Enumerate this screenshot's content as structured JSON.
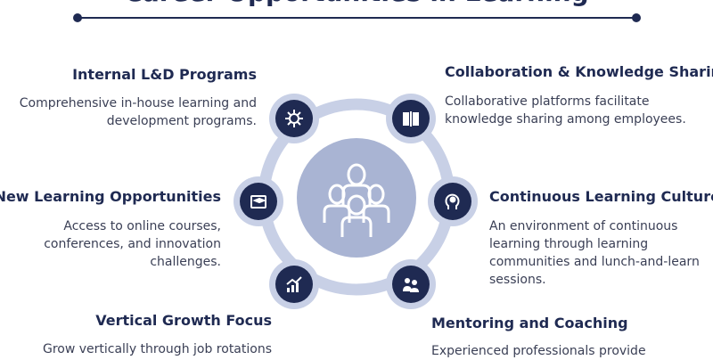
{
  "title": "Career Opportunities in Learning",
  "center": {
    "icon": "group-people-icon"
  },
  "items": [
    {
      "title": "Internal L&D Programs",
      "description": "Comprehensive in-house learning and development programs.",
      "icon": "virus-gear-icon"
    },
    {
      "title": "Collaboration & Knowledge Sharing",
      "description": "Collaborative platforms facilitate knowledge sharing among employees.",
      "icon": "open-book-icon"
    },
    {
      "title": "New Learning Opportunities",
      "description": "Access to online courses, conferences, and innovation challenges.",
      "icon": "graduation-cap-icon"
    },
    {
      "title": "Continuous Learning Culture",
      "description": "An environment of continuous learning through learning communities and lunch-and-learn sessions.",
      "icon": "head-brain-icon"
    },
    {
      "title": "Vertical Growth Focus",
      "description": "Grow vertically through job rotations",
      "icon": "growth-chart-icon"
    },
    {
      "title": "Mentoring and Coaching",
      "description": "Experienced professionals provide",
      "icon": "mentor-icon"
    }
  ],
  "colors": {
    "navy": "#1f2a52",
    "ring": "#c8d0e6",
    "center": "#a9b4d3"
  }
}
